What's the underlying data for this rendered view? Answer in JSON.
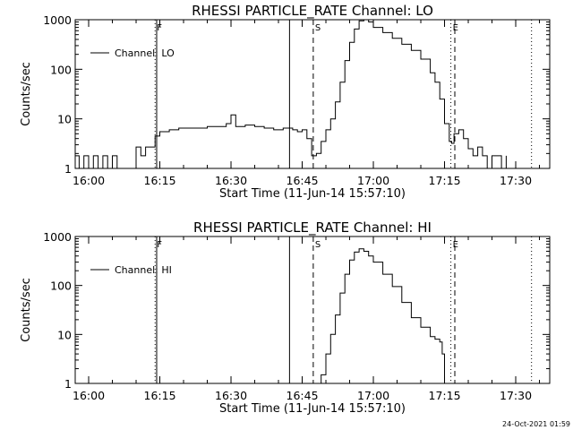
{
  "footer": {
    "timestamp": "24-Oct-2021 01:59"
  },
  "chart_data": [
    {
      "type": "line",
      "title": "RHESSI PARTICLE_RATE Channel: LO",
      "xlabel": "Start Time (11-Jun-14 15:57:10)",
      "ylabel": "Counts/sec",
      "yscale": "log",
      "xlim": [
        "15:57:10",
        "17:37:10"
      ],
      "ylim": [
        1,
        1000
      ],
      "x_ticks": [
        "16:00",
        "16:15",
        "16:30",
        "16:45",
        "17:00",
        "17:15",
        "17:30"
      ],
      "y_ticks": [
        "1",
        "10",
        "100",
        "1000"
      ],
      "legend": {
        "position": "top-left",
        "entries": [
          "Channel: LO"
        ]
      },
      "markers": [
        {
          "label": "F",
          "time": "16:14:00",
          "style": "dotted"
        },
        {
          "time": "16:14:20",
          "style": "solid"
        },
        {
          "time": "16:42:20",
          "style": "solid"
        },
        {
          "label": "S",
          "time": "16:47:20",
          "style": "dashed"
        },
        {
          "label": "E",
          "time": "17:16:20",
          "style": "dotted"
        },
        {
          "time": "17:17:10",
          "style": "dashed"
        },
        {
          "time": "17:33:20",
          "style": "dotted"
        }
      ],
      "series": [
        {
          "name": "Channel: LO",
          "x": [
            "15:57:10",
            "15:58:00",
            "15:59:00",
            "16:00:00",
            "16:01:00",
            "16:02:00",
            "16:03:00",
            "16:04:00",
            "16:05:00",
            "16:06:00",
            "16:07:00",
            "16:08:00",
            "16:09:00",
            "16:10:00",
            "16:11:00",
            "16:12:00",
            "16:13:00",
            "16:14:00",
            "16:15:00",
            "16:17:00",
            "16:19:00",
            "16:21:00",
            "16:23:00",
            "16:25:00",
            "16:27:00",
            "16:29:00",
            "16:30:00",
            "16:31:00",
            "16:33:00",
            "16:35:00",
            "16:37:00",
            "16:39:00",
            "16:41:00",
            "16:43:00",
            "16:44:00",
            "16:45:00",
            "16:46:00",
            "16:47:00",
            "16:48:00",
            "16:49:00",
            "16:50:00",
            "16:51:00",
            "16:52:00",
            "16:53:00",
            "16:54:00",
            "16:55:00",
            "16:56:00",
            "16:57:00",
            "16:58:00",
            "16:59:00",
            "17:00:00",
            "17:02:00",
            "17:04:00",
            "17:06:00",
            "17:08:00",
            "17:10:00",
            "17:12:00",
            "17:13:00",
            "17:14:00",
            "17:15:00",
            "17:16:00",
            "17:16:30",
            "17:17:00",
            "17:18:00",
            "17:19:00",
            "17:20:00",
            "17:21:00",
            "17:22:00",
            "17:23:00",
            "17:24:00",
            "17:25:00",
            "17:26:00",
            "17:27:00",
            "17:28:00"
          ],
          "y": [
            1.8,
            1,
            1.8,
            1,
            1.8,
            1,
            1.8,
            1,
            1.8,
            1,
            1,
            1,
            1,
            2.7,
            1.8,
            2.7,
            2.7,
            4.5,
            5.5,
            6,
            6.5,
            6.5,
            6.5,
            7,
            7,
            8,
            12,
            7,
            7.5,
            7,
            6.5,
            6,
            6.5,
            6,
            5.5,
            6,
            4,
            1.8,
            2,
            3.5,
            6,
            10,
            22,
            55,
            150,
            350,
            650,
            950,
            1000,
            900,
            700,
            550,
            420,
            320,
            240,
            160,
            85,
            55,
            25,
            8,
            3.5,
            3.2,
            5,
            6,
            4,
            2.5,
            1.8,
            2.7,
            1.8,
            1,
            1.8,
            1.8,
            1,
            1.8
          ]
        }
      ]
    },
    {
      "type": "line",
      "title": "RHESSI PARTICLE_RATE Channel: HI",
      "xlabel": "Start Time (11-Jun-14 15:57:10)",
      "ylabel": "Counts/sec",
      "yscale": "log",
      "xlim": [
        "15:57:10",
        "17:37:10"
      ],
      "ylim": [
        1,
        1000
      ],
      "x_ticks": [
        "16:00",
        "16:15",
        "16:30",
        "16:45",
        "17:00",
        "17:15",
        "17:30"
      ],
      "y_ticks": [
        "1",
        "10",
        "100",
        "1000"
      ],
      "legend": {
        "position": "top-left",
        "entries": [
          "Channel: HI"
        ]
      },
      "markers": [
        {
          "label": "F",
          "time": "16:14:00",
          "style": "dotted"
        },
        {
          "time": "16:14:20",
          "style": "solid"
        },
        {
          "time": "16:42:20",
          "style": "solid"
        },
        {
          "label": "S",
          "time": "16:47:20",
          "style": "dashed"
        },
        {
          "label": "E",
          "time": "17:16:20",
          "style": "dotted"
        },
        {
          "time": "17:17:10",
          "style": "dashed"
        },
        {
          "time": "17:33:20",
          "style": "dotted"
        }
      ],
      "series": [
        {
          "name": "Channel: HI",
          "x": [
            "16:48:00",
            "16:49:00",
            "16:50:00",
            "16:51:00",
            "16:52:00",
            "16:53:00",
            "16:54:00",
            "16:55:00",
            "16:56:00",
            "16:57:00",
            "16:58:00",
            "16:59:00",
            "17:00:00",
            "17:02:00",
            "17:04:00",
            "17:06:00",
            "17:08:00",
            "17:10:00",
            "17:12:00",
            "17:13:00",
            "17:14:00",
            "17:14:30",
            "17:15:00"
          ],
          "y": [
            1,
            1.5,
            4,
            10,
            25,
            70,
            170,
            330,
            480,
            560,
            500,
            400,
            300,
            170,
            95,
            45,
            22,
            14,
            9,
            8,
            7,
            4,
            1
          ]
        }
      ]
    }
  ]
}
